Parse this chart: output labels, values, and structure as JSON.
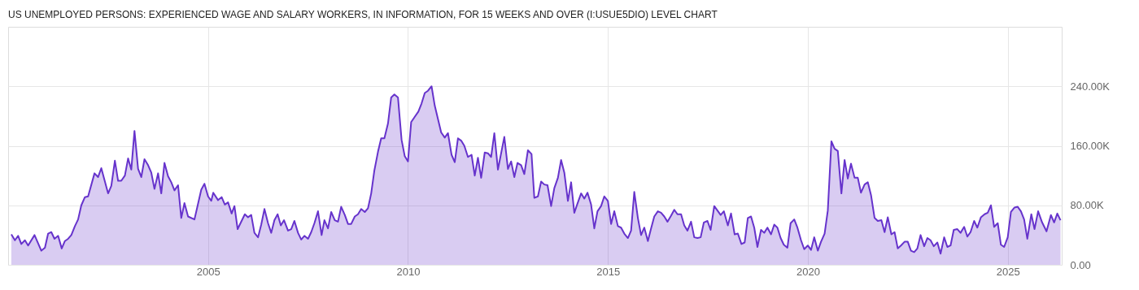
{
  "chart_data": {
    "type": "area",
    "title": "US UNEMPLOYED PERSONS: EXPERIENCED WAGE AND SALARY WORKERS, IN INFORMATION, FOR 15 WEEKS AND OVER (I:USUE5DIO) LEVEL CHART",
    "xlim": [
      2000.0,
      2026.35
    ],
    "xticks": [
      2005,
      2010,
      2015,
      2020,
      2025
    ],
    "ylim": [
      0,
      320000
    ],
    "yticks": [
      {
        "value": 0,
        "label": "0.00"
      },
      {
        "value": 80000,
        "label": "80.00K"
      },
      {
        "value": 160000,
        "label": "160.00K"
      },
      {
        "value": 240000,
        "label": "240.00K"
      }
    ],
    "grid": true,
    "series": [
      {
        "color": "#6633cc",
        "x": [
          2000.08,
          2000.17,
          2000.25,
          2000.33,
          2000.42,
          2000.5,
          2000.66,
          2000.83,
          2000.92,
          2001.0,
          2001.08,
          2001.16,
          2001.25,
          2001.34,
          2001.42,
          2001.5,
          2001.58,
          2001.67,
          2001.75,
          2001.83,
          2001.92,
          2002.0,
          2002.16,
          2002.25,
          2002.33,
          2002.5,
          2002.58,
          2002.67,
          2002.75,
          2002.83,
          2002.92,
          2003.0,
          2003.08,
          2003.16,
          2003.25,
          2003.33,
          2003.41,
          2003.5,
          2003.58,
          2003.66,
          2003.75,
          2003.83,
          2003.91,
          2004.0,
          2004.08,
          2004.16,
          2004.25,
          2004.33,
          2004.41,
          2004.5,
          2004.66,
          2004.83,
          2004.91,
          2005.0,
          2005.08,
          2005.13,
          2005.25,
          2005.34,
          2005.42,
          2005.5,
          2005.59,
          2005.66,
          2005.74,
          2005.92,
          2006.0,
          2006.08,
          2006.16,
          2006.25,
          2006.33,
          2006.41,
          2006.5,
          2006.58,
          2006.66,
          2006.74,
          2006.82,
          2006.9,
          2007.0,
          2007.08,
          2007.16,
          2007.25,
          2007.33,
          2007.41,
          2007.5,
          2007.58,
          2007.66,
          2007.75,
          2007.84,
          2007.91,
          2008.0,
          2008.08,
          2008.17,
          2008.25,
          2008.33,
          2008.42,
          2008.5,
          2008.58,
          2008.67,
          2008.75,
          2008.83,
          2008.92,
          2009.0,
          2009.08,
          2009.16,
          2009.25,
          2009.33,
          2009.41,
          2009.5,
          2009.58,
          2009.66,
          2009.75,
          2009.84,
          2009.92,
          2010.0,
          2010.08,
          2010.17,
          2010.26,
          2010.34,
          2010.42,
          2010.5,
          2010.59,
          2010.67,
          2010.75,
          2010.83,
          2010.92,
          2011.0,
          2011.09,
          2011.17,
          2011.25,
          2011.33,
          2011.41,
          2011.5,
          2011.59,
          2011.67,
          2011.75,
          2011.83,
          2011.92,
          2012.0,
          2012.08,
          2012.16,
          2012.25,
          2012.33,
          2012.41,
          2012.5,
          2012.58,
          2012.66,
          2012.74,
          2012.83,
          2012.91,
          2013.0,
          2013.09,
          2013.16,
          2013.25,
          2013.33,
          2013.41,
          2013.49,
          2013.58,
          2013.66,
          2013.75,
          2013.83,
          2013.91,
          2014.0,
          2014.08,
          2014.16,
          2014.25,
          2014.33,
          2014.41,
          2014.49,
          2014.58,
          2014.66,
          2014.74,
          2014.83,
          2014.91,
          2015.0,
          2015.08,
          2015.16,
          2015.25,
          2015.33,
          2015.41,
          2015.5,
          2015.58,
          2015.66,
          2015.75,
          2015.83,
          2015.91,
          2016.0,
          2016.08,
          2016.16,
          2016.25,
          2016.33,
          2016.41,
          2016.49,
          2016.58,
          2016.66,
          2016.74,
          2016.83,
          2016.91,
          2016.99,
          2017.08,
          2017.16,
          2017.24,
          2017.32,
          2017.4,
          2017.49,
          2017.57,
          2017.66,
          2017.74,
          2017.82,
          2017.9,
          2018.0,
          2018.08,
          2018.17,
          2018.25,
          2018.34,
          2018.42,
          2018.5,
          2018.58,
          2018.66,
          2018.74,
          2018.83,
          2018.91,
          2018.99,
          2019.08,
          2019.16,
          2019.24,
          2019.32,
          2019.4,
          2019.49,
          2019.57,
          2019.66,
          2019.74,
          2019.83,
          2019.91,
          2020.0,
          2020.08,
          2020.16,
          2020.25,
          2020.33,
          2020.42,
          2020.5,
          2020.59,
          2020.67,
          2020.75,
          2020.84,
          2020.92,
          2021.0,
          2021.08,
          2021.17,
          2021.25,
          2021.33,
          2021.42,
          2021.5,
          2021.58,
          2021.67,
          2021.75,
          2021.84,
          2021.92,
          2022.0,
          2022.09,
          2022.17,
          2022.25,
          2022.33,
          2022.42,
          2022.5,
          2022.58,
          2022.66,
          2022.74,
          2022.82,
          2022.91,
          2022.99,
          2023.07,
          2023.15,
          2023.24,
          2023.32,
          2023.41,
          2023.49,
          2023.57,
          2023.65,
          2023.74,
          2023.82,
          2023.91,
          2023.99,
          2024.07,
          2024.16,
          2024.24,
          2024.33,
          2024.42,
          2024.5,
          2024.58,
          2024.66,
          2024.75,
          2024.83,
          2024.91,
          2025.0,
          2025.08,
          2025.17,
          2025.25,
          2025.33,
          2025.41,
          2025.49,
          2025.59,
          2025.67,
          2025.76,
          2025.86,
          2025.97,
          2026.08,
          2026.16,
          2026.24,
          2026.32
        ],
        "values": [
          41000,
          33000,
          39000,
          28000,
          33000,
          26000,
          40000,
          19000,
          23000,
          42000,
          44000,
          35000,
          39000,
          22000,
          32000,
          35000,
          40000,
          52000,
          61000,
          80000,
          91000,
          92000,
          123000,
          118000,
          130000,
          96000,
          106000,
          140000,
          113000,
          113000,
          120000,
          143000,
          128000,
          180000,
          129000,
          118000,
          142000,
          134000,
          124000,
          102000,
          123000,
          96000,
          137000,
          119000,
          111000,
          100000,
          107000,
          63000,
          83000,
          65000,
          61000,
          101000,
          109000,
          92000,
          86000,
          97000,
          87000,
          91000,
          81000,
          84000,
          69000,
          79000,
          48000,
          68000,
          64000,
          67000,
          43000,
          37000,
          54000,
          75000,
          56000,
          43000,
          60000,
          68000,
          53000,
          60000,
          46000,
          48000,
          59000,
          43000,
          34000,
          39000,
          35000,
          44000,
          56000,
          72000,
          40000,
          60000,
          49000,
          71000,
          60000,
          58000,
          78000,
          67000,
          55000,
          55000,
          65000,
          68000,
          75000,
          71000,
          76000,
          96000,
          127000,
          152000,
          170000,
          170000,
          190000,
          225000,
          229000,
          225000,
          168000,
          146000,
          139000,
          192000,
          199000,
          206000,
          217000,
          231000,
          234000,
          240000,
          214000,
          196000,
          178000,
          171000,
          177000,
          148000,
          138000,
          170000,
          167000,
          160000,
          145000,
          148000,
          120000,
          144000,
          117000,
          151000,
          150000,
          145000,
          177000,
          128000,
          150000,
          172000,
          129000,
          139000,
          118000,
          137000,
          134000,
          122000,
          154000,
          149000,
          90000,
          92000,
          112000,
          108000,
          107000,
          79000,
          103000,
          117000,
          141000,
          124000,
          86000,
          111000,
          70000,
          84000,
          96000,
          89000,
          97000,
          81000,
          49000,
          72000,
          79000,
          92000,
          86000,
          55000,
          72000,
          52000,
          50000,
          42000,
          36000,
          46000,
          98000,
          63000,
          40000,
          50000,
          32000,
          49000,
          65000,
          72000,
          70000,
          65000,
          58000,
          66000,
          74000,
          68000,
          68000,
          53000,
          46000,
          58000,
          37000,
          36000,
          37000,
          57000,
          59000,
          47000,
          79000,
          73000,
          67000,
          72000,
          53000,
          69000,
          41000,
          42000,
          28000,
          30000,
          63000,
          65000,
          50000,
          24000,
          47000,
          43000,
          50000,
          41000,
          54000,
          50000,
          36000,
          27000,
          23000,
          56000,
          61000,
          50000,
          33000,
          21000,
          26000,
          20000,
          37000,
          19000,
          31000,
          42000,
          73000,
          166000,
          156000,
          153000,
          96000,
          141000,
          116000,
          136000,
          117000,
          117000,
          97000,
          108000,
          111000,
          94000,
          63000,
          59000,
          60000,
          44000,
          64000,
          41000,
          44000,
          22000,
          26000,
          31000,
          31000,
          19000,
          17000,
          22000,
          40000,
          25000,
          36000,
          33000,
          25000,
          30000,
          15000,
          37000,
          24000,
          26000,
          47000,
          48000,
          43000,
          51000,
          38000,
          44000,
          59000,
          50000,
          64000,
          68000,
          70000,
          80000,
          51000,
          56000,
          27000,
          24000,
          37000,
          71000,
          77000,
          78000,
          72000,
          61000,
          35000,
          68000,
          48000,
          72000,
          57000,
          45000,
          67000,
          57000,
          69000,
          60000
        ]
      }
    ]
  }
}
